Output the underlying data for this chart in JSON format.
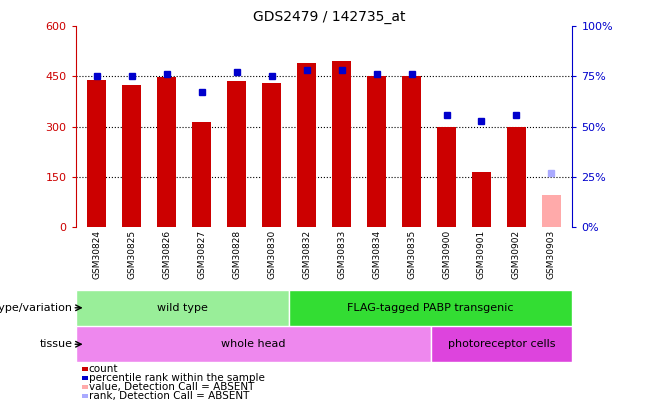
{
  "title": "GDS2479 / 142735_at",
  "samples": [
    "GSM30824",
    "GSM30825",
    "GSM30826",
    "GSM30827",
    "GSM30828",
    "GSM30830",
    "GSM30832",
    "GSM30833",
    "GSM30834",
    "GSM30835",
    "GSM30900",
    "GSM30901",
    "GSM30902",
    "GSM30903"
  ],
  "counts": [
    440,
    425,
    448,
    315,
    437,
    430,
    490,
    495,
    450,
    450,
    300,
    163,
    298,
    95
  ],
  "percentile_ranks": [
    75,
    75,
    76,
    67,
    77,
    75,
    78,
    78,
    76,
    76,
    56,
    53,
    56,
    27
  ],
  "absent_count_indices": [
    13
  ],
  "absent_rank_indices": [
    13
  ],
  "bar_color_normal": "#cc0000",
  "bar_color_absent": "#ffaaaa",
  "dot_color_normal": "#0000cc",
  "dot_color_absent": "#aaaaff",
  "ylim_left": [
    0,
    600
  ],
  "ylim_right": [
    0,
    100
  ],
  "yticks_left": [
    0,
    150,
    300,
    450,
    600
  ],
  "ytick_labels_left": [
    "0",
    "150",
    "300",
    "450",
    "600"
  ],
  "yticks_right": [
    0,
    25,
    50,
    75,
    100
  ],
  "ytick_labels_right": [
    "0%",
    "25%",
    "50%",
    "75%",
    "100%"
  ],
  "genotype_groups": [
    {
      "label": "wild type",
      "start": 0,
      "end": 6,
      "color": "#99ee99"
    },
    {
      "label": "FLAG-tagged PABP transgenic",
      "start": 6,
      "end": 14,
      "color": "#33dd33"
    }
  ],
  "tissue_groups": [
    {
      "label": "whole head",
      "start": 0,
      "end": 10,
      "color": "#ee88ee"
    },
    {
      "label": "photoreceptor cells",
      "start": 10,
      "end": 14,
      "color": "#dd44dd"
    }
  ],
  "genotype_row_label": "genotype/variation",
  "tissue_row_label": "tissue",
  "legend_items": [
    {
      "color": "#cc0000",
      "label": "count"
    },
    {
      "color": "#0000cc",
      "label": "percentile rank within the sample"
    },
    {
      "color": "#ffaaaa",
      "label": "value, Detection Call = ABSENT"
    },
    {
      "color": "#aaaaff",
      "label": "rank, Detection Call = ABSENT"
    }
  ],
  "background_color": "#ffffff",
  "plot_bg_color": "#ffffff",
  "label_color_left": "#cc0000",
  "label_color_right": "#0000cc"
}
